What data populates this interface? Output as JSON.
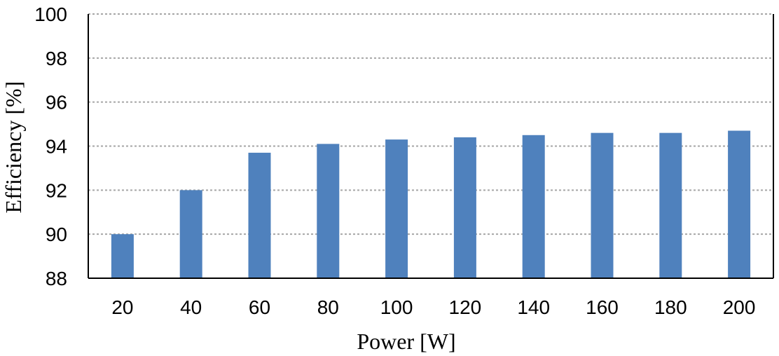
{
  "chart_data": {
    "type": "bar",
    "title": "",
    "xlabel": "Power [W]",
    "ylabel": "Efficiency [%]",
    "categories": [
      "20",
      "40",
      "60",
      "80",
      "100",
      "120",
      "140",
      "160",
      "180",
      "200"
    ],
    "values": [
      90.0,
      92.0,
      93.7,
      94.1,
      94.3,
      94.4,
      94.5,
      94.6,
      94.6,
      94.7
    ],
    "ylim": [
      88,
      100
    ],
    "yticks": [
      "88",
      "90",
      "92",
      "94",
      "96",
      "98",
      "100"
    ],
    "grid": "horizontal dotted",
    "legend": "none",
    "colors": {
      "bar": "#4F81BD",
      "grid": "#A6A6A6",
      "axis": "#000000"
    }
  }
}
